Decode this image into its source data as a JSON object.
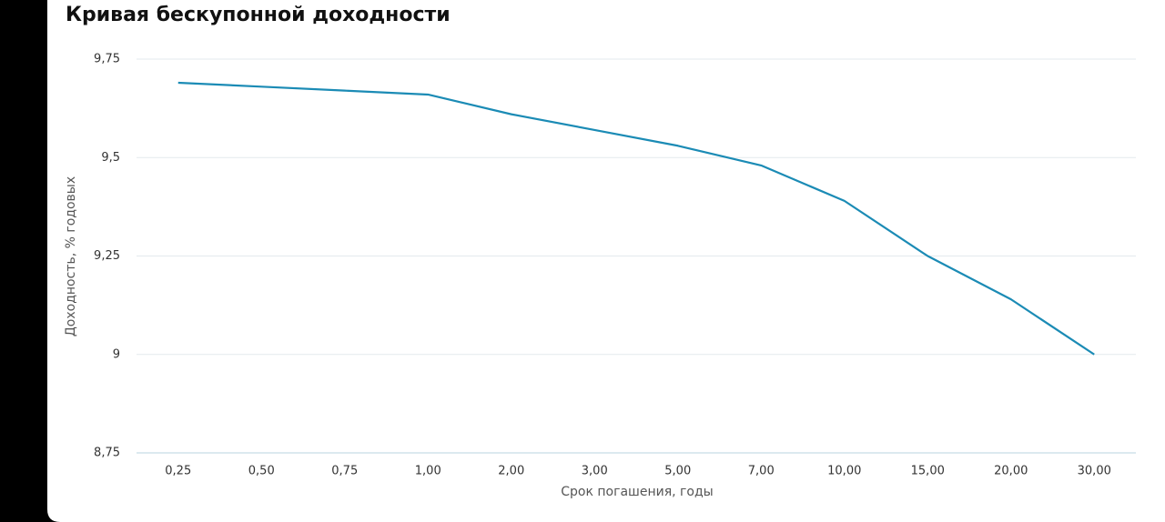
{
  "chart_data": {
    "type": "line",
    "title": "Кривая бескупонной доходности",
    "x_label": "Срок погашения, годы",
    "y_label": "Доходность, % годовых",
    "categories": [
      "0,25",
      "0,50",
      "0,75",
      "1,00",
      "2,00",
      "3,00",
      "5,00",
      "7,00",
      "10,00",
      "15,00",
      "20,00",
      "30,00"
    ],
    "values": [
      9.69,
      9.68,
      9.67,
      9.66,
      9.61,
      9.57,
      9.53,
      9.48,
      9.39,
      9.25,
      9.14,
      9.0
    ],
    "color": "#1b8bb5",
    "ylim": [
      8.75,
      9.75
    ],
    "yticks": [
      {
        "value": 8.75,
        "label": "8,75"
      },
      {
        "value": 9,
        "label": "9"
      },
      {
        "value": 9.25,
        "label": "9,25"
      },
      {
        "value": 9.5,
        "label": "9,5"
      },
      {
        "value": 9.75,
        "label": "9,75"
      }
    ],
    "grid": true
  }
}
